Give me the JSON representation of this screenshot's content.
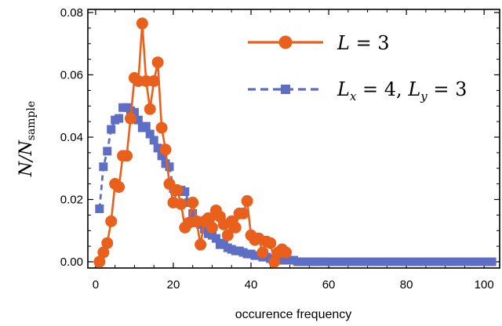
{
  "chart_data": {
    "type": "line",
    "xlabel": "occurence frequency",
    "ylabel": {
      "main": "N/N",
      "sub": "sample"
    },
    "xlim": [
      -2,
      104
    ],
    "ylim": [
      -0.002,
      0.081
    ],
    "xticks": [
      0,
      20,
      40,
      60,
      80,
      100
    ],
    "xtick_labels": [
      "0",
      "20",
      "40",
      "60",
      "80",
      "100"
    ],
    "yticks": [
      0.0,
      0.02,
      0.04,
      0.06,
      0.08
    ],
    "ytick_labels": [
      "0.00",
      "0.02",
      "0.04",
      "0.06",
      "0.08"
    ],
    "grid": false,
    "legend_position": "top-right",
    "series": [
      {
        "name": "L = 3",
        "label": {
          "main": "L",
          "rest": " = 3"
        },
        "color": "#e8601c",
        "marker": "circle",
        "line_style": "solid",
        "x": [
          1,
          2,
          3,
          4,
          5,
          6,
          7,
          8,
          9,
          10,
          11,
          12,
          13,
          14,
          15,
          16,
          17,
          18,
          19,
          20,
          21,
          22,
          23,
          24,
          25,
          26,
          27,
          28,
          29,
          30,
          31,
          32,
          33,
          34,
          35,
          36,
          37,
          38,
          39,
          40,
          41,
          42,
          43,
          44,
          45,
          46,
          47,
          48,
          49
        ],
        "y": [
          0.0,
          0.003,
          0.006,
          0.013,
          0.025,
          0.024,
          0.034,
          0.034,
          0.046,
          0.059,
          0.058,
          0.0765,
          0.058,
          0.049,
          0.058,
          0.064,
          0.043,
          0.036,
          0.025,
          0.019,
          0.023,
          0.0185,
          0.011,
          0.0125,
          0.019,
          0.013,
          0.0055,
          0.013,
          0.014,
          0.011,
          0.0165,
          0.0145,
          0.012,
          0.0085,
          0.013,
          0.011,
          0.0155,
          0.0155,
          0.0195,
          0.0085,
          0.007,
          0.0075,
          0.003,
          0.0065,
          0.006,
          0.0,
          0.003,
          0.004,
          0.003
        ]
      },
      {
        "name": "Lx = 4, Ly = 3",
        "label": {
          "main": "L",
          "sub1": "x",
          "mid": " = 4, ",
          "main2": "L",
          "sub2": "y",
          "rest": " = 3"
        },
        "color": "#5e6ec4",
        "marker": "square",
        "line_style": "dashed",
        "x": [
          1,
          2,
          3,
          4,
          5,
          6,
          7,
          8,
          9,
          10,
          11,
          12,
          13,
          14,
          15,
          16,
          17,
          18,
          19,
          20,
          21,
          22,
          23,
          24,
          25,
          26,
          27,
          28,
          29,
          30,
          31,
          32,
          33,
          34,
          35,
          36,
          37,
          38,
          39,
          40,
          41,
          42,
          43,
          44,
          45,
          46,
          47,
          48,
          49,
          50,
          51,
          52,
          53,
          54,
          55,
          56,
          57,
          58,
          60,
          62,
          64,
          66,
          68,
          70,
          72,
          74,
          76,
          78,
          80,
          82,
          84,
          86,
          88,
          90,
          92,
          94,
          96,
          98,
          100,
          102
        ],
        "y": [
          0.017,
          0.0305,
          0.0355,
          0.0425,
          0.0455,
          0.046,
          0.0495,
          0.0495,
          0.0485,
          0.048,
          0.0455,
          0.043,
          0.0435,
          0.041,
          0.039,
          0.0365,
          0.034,
          0.0315,
          0.0305,
          0.0235,
          0.0225,
          0.023,
          0.0225,
          0.019,
          0.0155,
          0.0125,
          0.012,
          0.0105,
          0.009,
          0.0085,
          0.0075,
          0.0055,
          0.006,
          0.0045,
          0.004,
          0.0035,
          0.0035,
          0.003,
          0.0025,
          0.0025,
          0.002,
          0.002,
          0.0015,
          0.0015,
          0.001,
          0.001,
          0.001,
          0.0005,
          0.0005,
          0.0005,
          0.0005,
          0.0,
          0.0,
          0.0,
          0.0,
          0.0,
          0.0,
          0.0,
          0.0,
          0.0,
          0.0,
          0.0,
          0.0,
          0.0,
          0.0,
          0.0,
          0.0,
          0.0,
          0.0,
          0.0,
          0.0,
          0.0,
          0.0,
          0.0,
          0.0,
          0.0,
          0.0,
          0.0,
          0.0,
          0.0
        ]
      }
    ]
  }
}
